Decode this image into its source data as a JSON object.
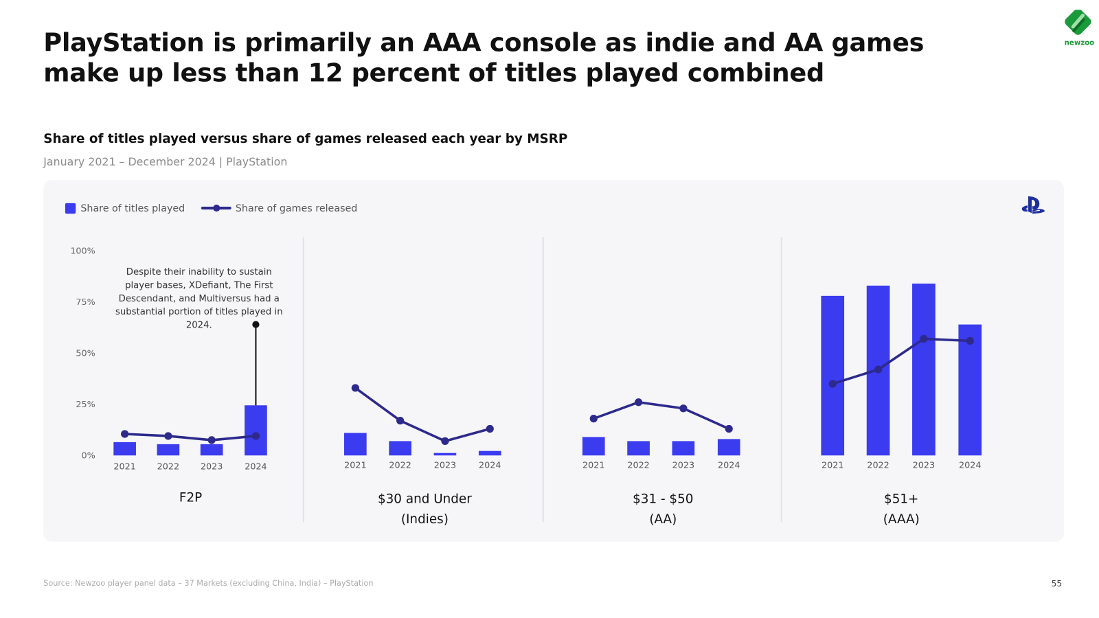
{
  "title": "PlayStation is primarily an AAA console as indie and AA games make up less than 12 percent of titles played combined",
  "footer": {
    "source": "Source: Newzoo player panel data – 37 Markets (excluding China, India) – PlayStation",
    "page": "55"
  },
  "logos": {
    "brand": "newzoo",
    "platform_icon": "playstation-icon"
  },
  "colors": {
    "bar": "#3b3bef",
    "line": "#2d2a8c",
    "panel": "#f6f6f9",
    "brand": "#1a9a3a"
  },
  "chart_data": {
    "type": "bar+line",
    "title": "Share of titles played versus share of games released each year by MSRP",
    "subtitle": "January 2021 – December 2024 | PlayStation",
    "legend": {
      "placement": "top-left",
      "entries": [
        "Share of titles played",
        "Share of games released"
      ]
    },
    "y_ticks": [
      "0%",
      "25%",
      "50%",
      "75%",
      "100%"
    ],
    "ylim": [
      0,
      100
    ],
    "grid": false,
    "groups": [
      {
        "label": "F2P",
        "label2": "",
        "years": [
          "2021",
          "2022",
          "2023",
          "2024"
        ],
        "titles_played": [
          6.5,
          5.5,
          5.5,
          24.5
        ],
        "games_released": [
          10.5,
          9.5,
          7.5,
          9.5
        ],
        "annotation": {
          "text": "Despite their inability to sustain player bases, XDefiant, The First Descendant, and Multiversus had a substantial portion of titles played in 2024.",
          "year": "2024",
          "value": 64
        }
      },
      {
        "label": "$30 and Under",
        "label2": "(Indies)",
        "years": [
          "2021",
          "2022",
          "2023",
          "2024"
        ],
        "titles_played": [
          11,
          7,
          1.2,
          2.2
        ],
        "games_released": [
          33,
          17,
          7,
          13
        ]
      },
      {
        "label": "$31 - $50",
        "label2": "(AA)",
        "years": [
          "2021",
          "2022",
          "2023",
          "2024"
        ],
        "titles_played": [
          9,
          7,
          7,
          8
        ],
        "games_released": [
          18,
          26,
          23,
          13
        ]
      },
      {
        "label": "$51+",
        "label2": "(AAA)",
        "years": [
          "2021",
          "2022",
          "2023",
          "2024"
        ],
        "titles_played": [
          78,
          83,
          84,
          64
        ],
        "games_released": [
          35,
          42,
          57,
          56
        ]
      }
    ]
  }
}
